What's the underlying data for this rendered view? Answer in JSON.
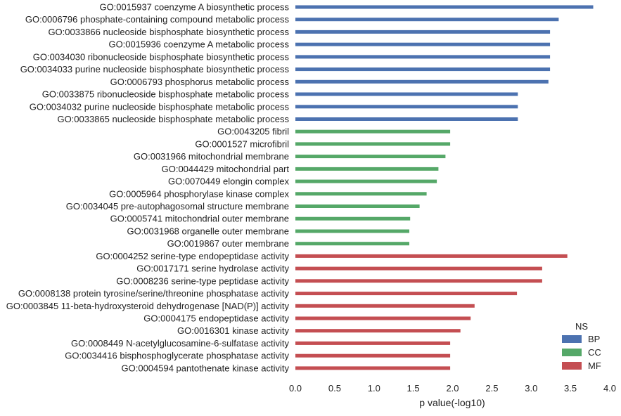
{
  "chart_data": {
    "type": "bar",
    "orientation": "horizontal",
    "xlabel": "p value(-log10)",
    "ylabel": "",
    "title": "",
    "xlim": [
      0,
      4.0
    ],
    "xticks": [
      "0.0",
      "0.5",
      "1.0",
      "1.5",
      "2.0",
      "2.5",
      "3.0",
      "3.5",
      "4.0"
    ],
    "grid": false,
    "legend": {
      "title": "NS",
      "position": "bottom-right",
      "entries": [
        {
          "name": "BP",
          "color": "#4c72b0"
        },
        {
          "name": "CC",
          "color": "#55a868"
        },
        {
          "name": "MF",
          "color": "#c44e52"
        }
      ]
    },
    "categories": [
      "GO:0015937 coenzyme A biosynthetic process",
      "GO:0006796 phosphate-containing compound metabolic process",
      "GO:0033866 nucleoside bisphosphate biosynthetic process",
      "GO:0015936 coenzyme A metabolic process",
      "GO:0034030 ribonucleoside bisphosphate biosynthetic process",
      "GO:0034033 purine nucleoside bisphosphate biosynthetic process",
      "GO:0006793 phosphorus metabolic process",
      "GO:0033875 ribonucleoside bisphosphate metabolic process",
      "GO:0034032 purine nucleoside bisphosphate metabolic process",
      "GO:0033865 nucleoside bisphosphate metabolic process",
      "GO:0043205 fibril",
      "GO:0001527 microfibril",
      "GO:0031966 mitochondrial membrane",
      "GO:0044429 mitochondrial part",
      "GO:0070449 elongin complex",
      "GO:0005964 phosphorylase kinase complex",
      "GO:0034045 pre-autophagosomal structure membrane",
      "GO:0005741 mitochondrial outer membrane",
      "GO:0031968 organelle outer membrane",
      "GO:0019867 outer membrane",
      "GO:0004252 serine-type endopeptidase activity",
      "GO:0017171 serine hydrolase activity",
      "GO:0008236 serine-type peptidase activity",
      "GO:0008138 protein tyrosine/serine/threonine phosphatase activity",
      "GO:0003845 11-beta-hydroxysteroid dehydrogenase [NAD(P)] activity",
      "GO:0004175 endopeptidase activity",
      "GO:0016301 kinase activity",
      "GO:0008449 N-acetylglucosamine-6-sulfatase activity",
      "GO:0034416 bisphosphoglycerate phosphatase activity",
      "GO:0004594 pantothenate kinase activity"
    ],
    "groups": [
      "BP",
      "BP",
      "BP",
      "BP",
      "BP",
      "BP",
      "BP",
      "BP",
      "BP",
      "BP",
      "CC",
      "CC",
      "CC",
      "CC",
      "CC",
      "CC",
      "CC",
      "CC",
      "CC",
      "CC",
      "MF",
      "MF",
      "MF",
      "MF",
      "MF",
      "MF",
      "MF",
      "MF",
      "MF",
      "MF"
    ],
    "values": [
      3.79,
      3.35,
      3.24,
      3.24,
      3.24,
      3.24,
      3.22,
      2.83,
      2.83,
      2.83,
      1.97,
      1.97,
      1.91,
      1.82,
      1.8,
      1.67,
      1.58,
      1.46,
      1.45,
      1.45,
      3.46,
      3.14,
      3.14,
      2.82,
      2.28,
      2.23,
      2.1,
      1.97,
      1.97,
      1.97
    ]
  }
}
